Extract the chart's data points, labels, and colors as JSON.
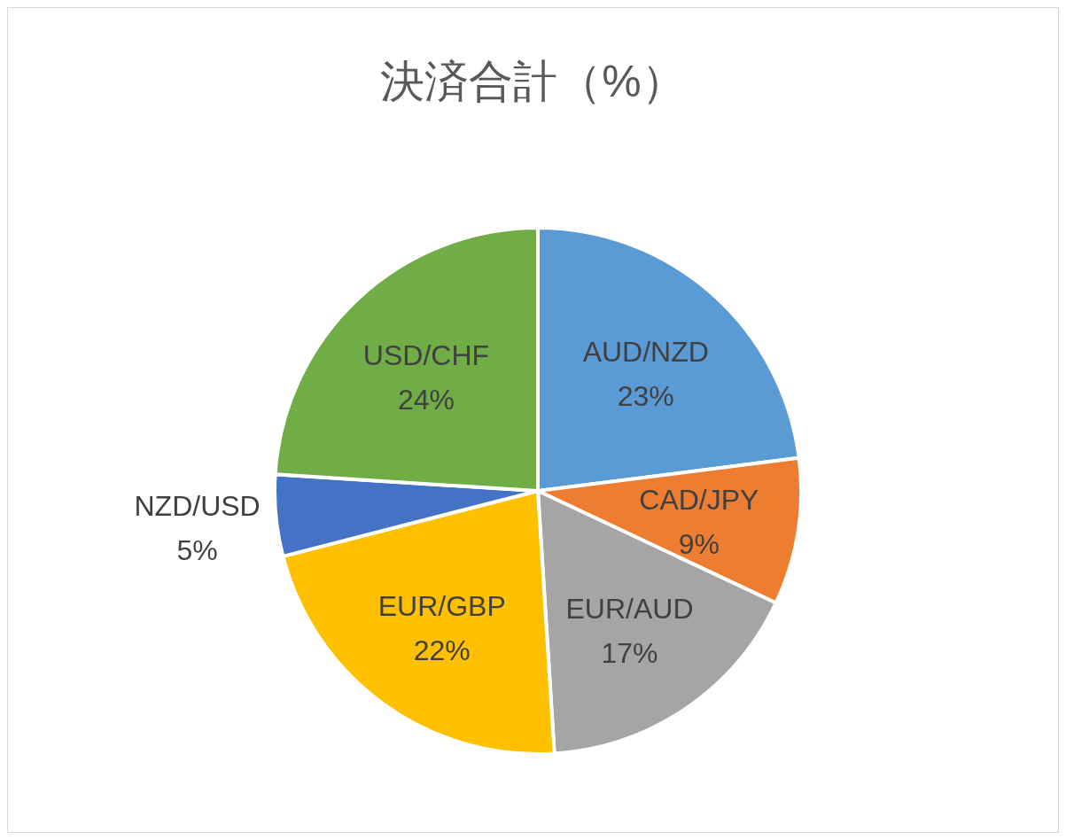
{
  "chart_data": {
    "type": "pie",
    "title": "決済合計（%）",
    "categories": [
      "AUD/NZD",
      "CAD/JPY",
      "EUR/AUD",
      "EUR/GBP",
      "NZD/USD",
      "USD/CHF"
    ],
    "values": [
      23,
      9,
      17,
      22,
      5,
      24
    ],
    "colors": [
      "#5b9bd5",
      "#ed7d31",
      "#a5a5a5",
      "#ffc000",
      "#4472c4",
      "#70ad47"
    ],
    "value_labels": [
      "23%",
      "9%",
      "17%",
      "22%",
      "5%",
      "24%"
    ],
    "legend": false
  }
}
